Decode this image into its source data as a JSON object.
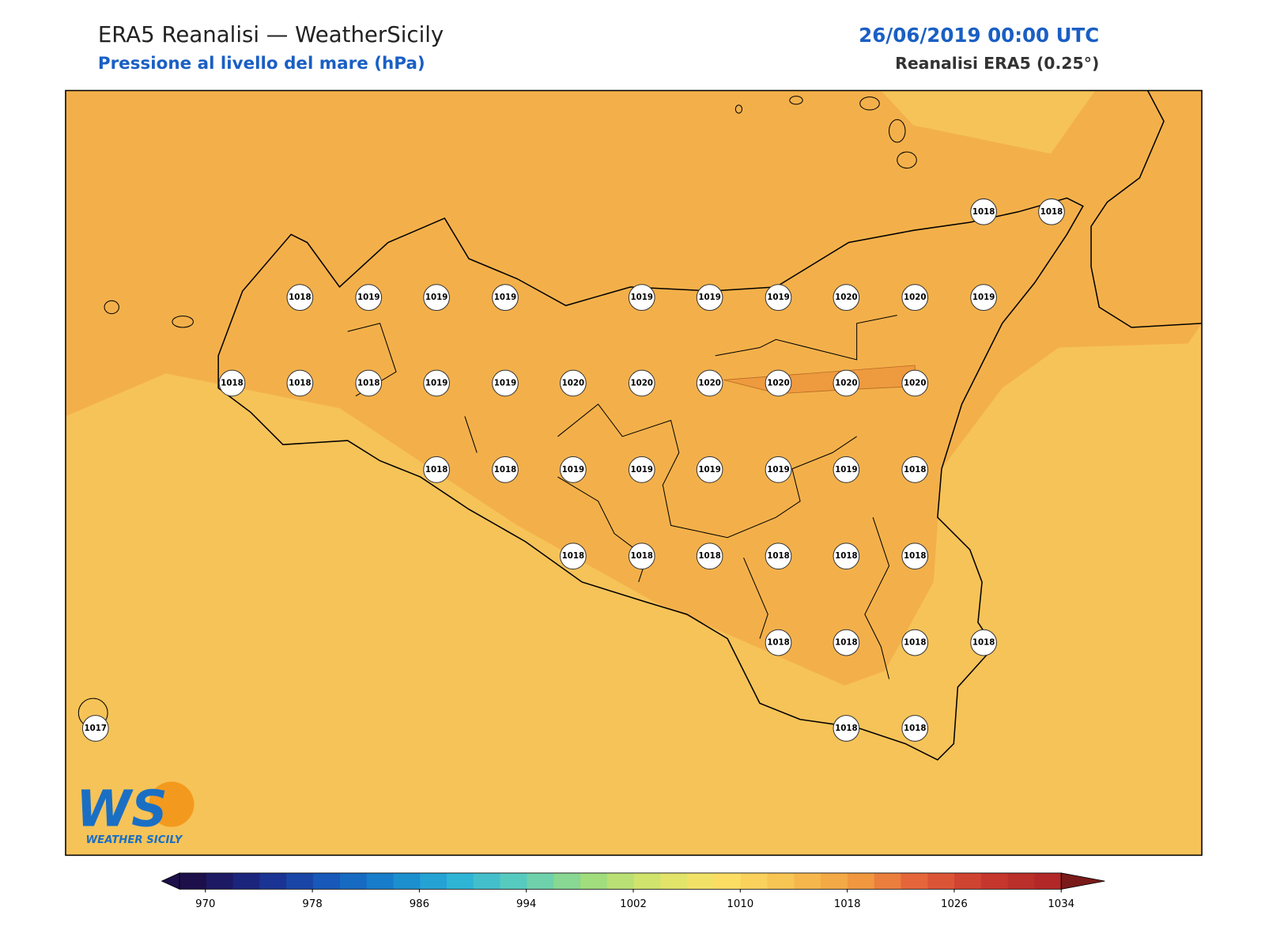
{
  "header": {
    "title": "ERA5 Reanalisi — WeatherSicily",
    "subtitle": "Pressione al livello del mare (hPa)",
    "date": "26/06/2019 00:00 UTC",
    "source": "Reanalisi ERA5 (0.25°)"
  },
  "stations": [
    1018,
    1018,
    1018,
    1019,
    1019,
    1019,
    1019,
    1019,
    1019,
    1020,
    1020,
    1019,
    1018,
    1018,
    1018,
    1019,
    1019,
    1020,
    1020,
    1020,
    1020,
    1020,
    1020,
    1018,
    1018,
    1019,
    1019,
    1019,
    1019,
    1019,
    1018,
    1018,
    1018,
    1018,
    1018,
    1018,
    1018,
    1018,
    1018,
    1018,
    1018,
    1018,
    1018,
    1017
  ],
  "colorbar": {
    "ticks": [
      970,
      978,
      986,
      994,
      1002,
      1010,
      1018,
      1026,
      1034
    ]
  },
  "logo": {
    "mark": "WS",
    "name": "WEATHER SICILY"
  }
}
